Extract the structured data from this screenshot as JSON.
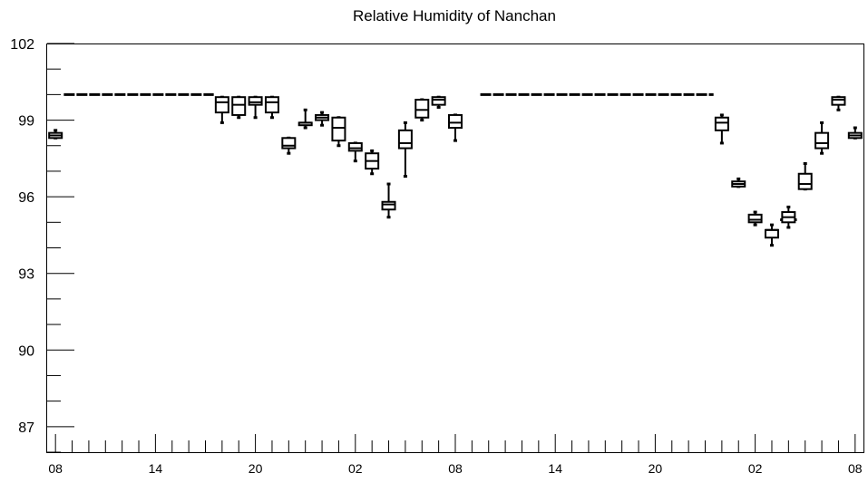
{
  "chart_data": {
    "type": "box",
    "title": "Relative Humidity of Nanchan",
    "xlabel": "",
    "ylabel": "",
    "ylim": [
      86,
      102
    ],
    "yticks": [
      87,
      90,
      93,
      96,
      99,
      102
    ],
    "x_tick_labels": [
      "08",
      "14",
      "20",
      "02",
      "08",
      "14",
      "20",
      "02",
      "08"
    ],
    "x_tick_label_hours": [
      0,
      6,
      12,
      18,
      24,
      30,
      36,
      42,
      48
    ],
    "x_range_hours": [
      -0.5,
      48.5
    ],
    "grid": false,
    "series": [
      {
        "x_hours": [
          0,
          10,
          11,
          12,
          13,
          14,
          15,
          16,
          17,
          18,
          19,
          20,
          21,
          22,
          23,
          24,
          40,
          41,
          42,
          43,
          44,
          45,
          46,
          47,
          48
        ],
        "min": [
          98.3,
          98.9,
          99.1,
          99.1,
          99.1,
          97.7,
          98.7,
          98.8,
          98.0,
          97.4,
          96.9,
          95.2,
          96.8,
          99.0,
          99.5,
          98.2,
          98.1,
          96.4,
          94.9,
          94.1,
          94.8,
          96.3,
          97.7,
          99.4,
          98.3
        ],
        "q1": [
          98.3,
          99.3,
          99.2,
          99.6,
          99.3,
          97.9,
          98.8,
          99.0,
          98.2,
          97.8,
          97.1,
          95.5,
          97.9,
          99.1,
          99.6,
          98.7,
          98.6,
          96.4,
          95.0,
          94.4,
          95.0,
          96.3,
          97.9,
          99.6,
          98.3
        ],
        "median": [
          98.4,
          99.7,
          99.6,
          99.7,
          99.7,
          98.0,
          98.9,
          99.1,
          98.7,
          97.9,
          97.4,
          95.7,
          98.1,
          99.4,
          99.8,
          98.9,
          98.9,
          96.5,
          95.1,
          94.7,
          95.2,
          96.5,
          98.1,
          99.8,
          98.4
        ],
        "q3": [
          98.5,
          99.9,
          99.9,
          99.9,
          99.9,
          98.3,
          98.9,
          99.2,
          99.1,
          98.1,
          97.7,
          95.8,
          98.6,
          99.8,
          99.9,
          99.2,
          99.1,
          96.6,
          95.3,
          94.7,
          95.4,
          96.9,
          98.5,
          99.9,
          98.5
        ],
        "max": [
          98.6,
          99.9,
          99.9,
          99.9,
          99.9,
          98.3,
          99.4,
          99.3,
          99.1,
          98.1,
          97.8,
          96.5,
          98.9,
          99.8,
          99.9,
          99.2,
          99.2,
          96.7,
          95.4,
          94.9,
          95.6,
          97.3,
          98.9,
          99.9,
          98.7
        ]
      }
    ],
    "lines": [
      {
        "x_hours": [
          0.5,
          9.5
        ],
        "y": 100.0,
        "style": "dashed"
      },
      {
        "x_hours": [
          25.5,
          39.5
        ],
        "y": 100.0,
        "style": "dashed"
      },
      {
        "x_hours": [
          43.5,
          44.5
        ],
        "y": 95.1,
        "style": "solid"
      }
    ]
  }
}
